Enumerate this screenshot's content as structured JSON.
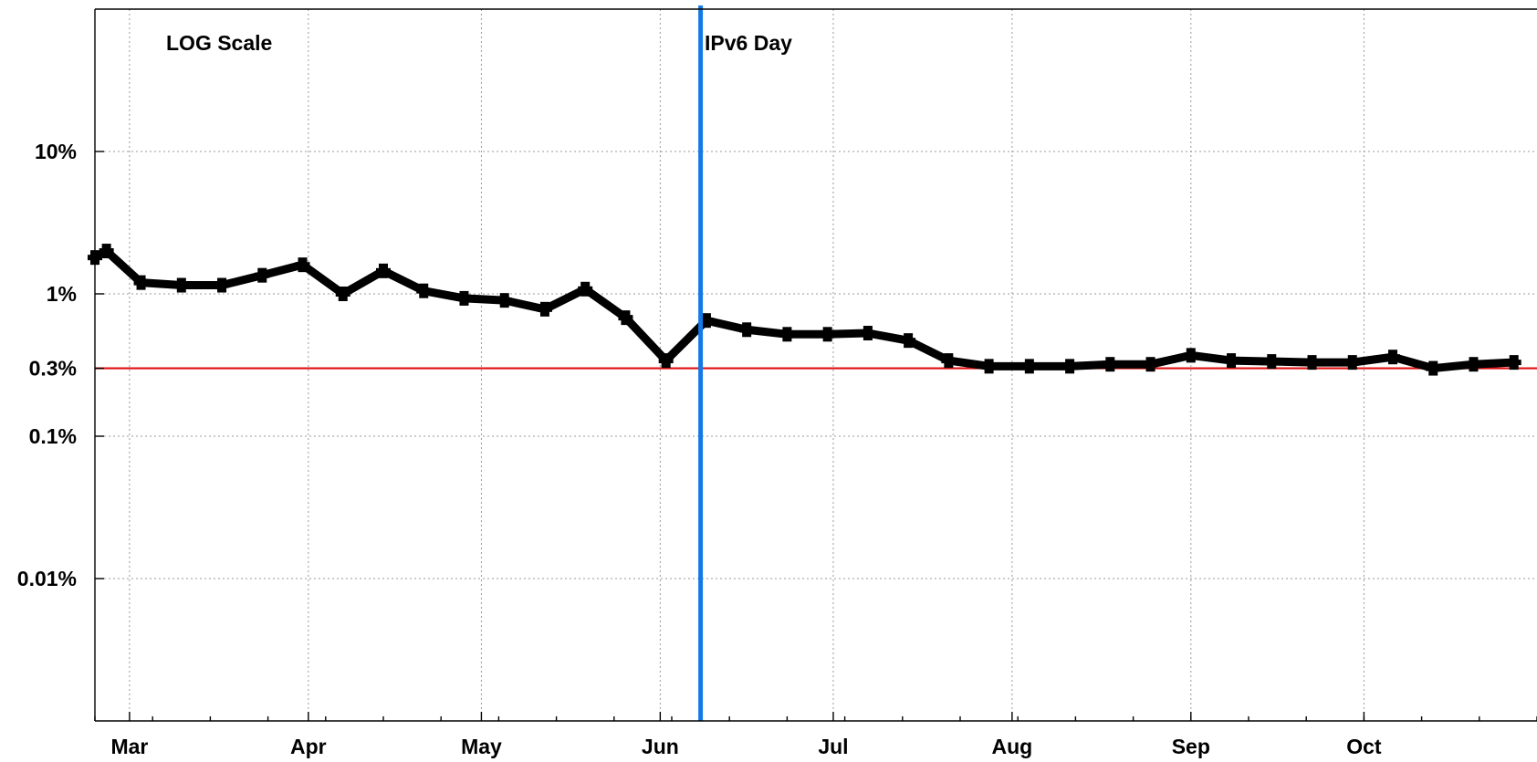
{
  "chart_data": {
    "type": "line",
    "title": "",
    "xlabel": "",
    "ylabel": "",
    "y_scale": "log",
    "ylim": [
      0.001,
      100
    ],
    "xlim": [
      "2011-02-23",
      "2011-10-31"
    ],
    "grid": true,
    "annotations": {
      "scale_note": "LOG Scale",
      "event_label": "IPv6 Day",
      "event_date": "2011-06-08",
      "event_color": "#1478e6",
      "reference_value": 0.3,
      "reference_color": "#e01010"
    },
    "x_ticks": [
      {
        "label": "Mar",
        "date": "2011-03-01"
      },
      {
        "label": "Apr",
        "date": "2011-04-01"
      },
      {
        "label": "May",
        "date": "2011-05-01"
      },
      {
        "label": "Jun",
        "date": "2011-06-01"
      },
      {
        "label": "Jul",
        "date": "2011-07-01"
      },
      {
        "label": "Aug",
        "date": "2011-08-01"
      },
      {
        "label": "Sep",
        "date": "2011-09-01"
      },
      {
        "label": "Oct",
        "date": "2011-10-01"
      }
    ],
    "y_ticks": [
      {
        "label": "10%",
        "value": 10
      },
      {
        "label": "1%",
        "value": 1
      },
      {
        "label": "0.3%",
        "value": 0.3
      },
      {
        "label": "0.1%",
        "value": 0.1
      },
      {
        "label": "0.01%",
        "value": 0.01
      }
    ],
    "series": [
      {
        "color": "#000000",
        "points": [
          [
            "2011-02-23",
            1.8
          ],
          [
            "2011-02-25",
            2.0
          ],
          [
            "2011-03-03",
            1.2
          ],
          [
            "2011-03-10",
            1.15
          ],
          [
            "2011-03-17",
            1.15
          ],
          [
            "2011-03-24",
            1.35
          ],
          [
            "2011-03-31",
            1.6
          ],
          [
            "2011-04-07",
            1.0
          ],
          [
            "2011-04-14",
            1.45
          ],
          [
            "2011-04-21",
            1.05
          ],
          [
            "2011-04-28",
            0.93
          ],
          [
            "2011-05-05",
            0.9
          ],
          [
            "2011-05-12",
            0.78
          ],
          [
            "2011-05-19",
            1.08
          ],
          [
            "2011-05-26",
            0.68
          ],
          [
            "2011-06-02",
            0.34
          ],
          [
            "2011-06-09",
            0.65
          ],
          [
            "2011-06-16",
            0.56
          ],
          [
            "2011-06-23",
            0.52
          ],
          [
            "2011-06-30",
            0.52
          ],
          [
            "2011-07-07",
            0.53
          ],
          [
            "2011-07-14",
            0.47
          ],
          [
            "2011-07-21",
            0.34
          ],
          [
            "2011-07-28",
            0.31
          ],
          [
            "2011-08-04",
            0.31
          ],
          [
            "2011-08-11",
            0.31
          ],
          [
            "2011-08-18",
            0.32
          ],
          [
            "2011-08-25",
            0.32
          ],
          [
            "2011-09-01",
            0.37
          ],
          [
            "2011-09-08",
            0.34
          ],
          [
            "2011-09-15",
            0.335
          ],
          [
            "2011-09-22",
            0.33
          ],
          [
            "2011-09-29",
            0.33
          ],
          [
            "2011-10-06",
            0.36
          ],
          [
            "2011-10-13",
            0.3
          ],
          [
            "2011-10-20",
            0.32
          ],
          [
            "2011-10-27",
            0.33
          ]
        ]
      }
    ]
  }
}
